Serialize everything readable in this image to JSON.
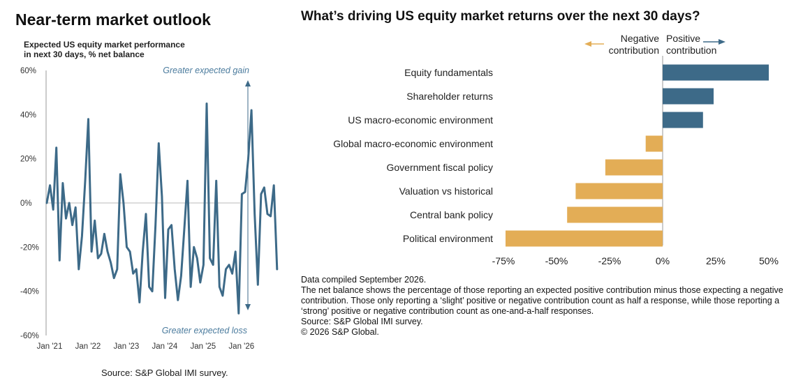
{
  "left_panel": {
    "title": "Near-term market outlook",
    "subtitle": "Expected US equity market performance\nin next 30 days, % net balance",
    "source": "Source: S&P Global IMI survey."
  },
  "right_panel": {
    "title": "What’s driving US equity market returns over the next 30 days?",
    "notes": [
      "Data compiled September 2026.",
      "The net balance shows the percentage of those reporting an expected positive contribution minus those expecting a negative contribution. Those only reporting a ‘slight’ positive or negative contribution count as half a response, while those reporting a ‘strong’ positive or negative contribution count as one-and-a-half responses.",
      "Source: S&P Global IMI survey.",
      "© 2026 S&P Global."
    ]
  },
  "colors": {
    "line": "#3d6a88",
    "positive": "#3d6a88",
    "negative": "#e3ad56",
    "zero_line": "#b8b8b8",
    "axis": "#999999"
  },
  "chart_data": [
    {
      "type": "line",
      "title": "Expected US equity market performance in next 30 days, % net balance",
      "y_tick_labels": [
        "60%",
        "40%",
        "20%",
        "0%",
        "-20%",
        "-40%",
        "-60%"
      ],
      "y_ticks": [
        60,
        40,
        20,
        0,
        -20,
        -40,
        -60
      ],
      "ylim": [
        -60,
        60
      ],
      "x_tick_labels": [
        "Jan '21",
        "Jan '22",
        "Jan '23",
        "Jan '24",
        "Jan '25",
        "Jan '26"
      ],
      "x_start": "2021-01",
      "annotations": {
        "top": "Greater expected gain",
        "bottom": "Greater  expected loss"
      },
      "series": [
        {
          "values": [
            0,
            8,
            -3,
            25,
            -26,
            9,
            -7,
            0,
            -10,
            -2,
            -30,
            -15,
            10,
            38,
            -22,
            -8,
            -25,
            -23,
            -14,
            -22,
            -27,
            -34,
            -30,
            13,
            0,
            -20,
            -22,
            -32,
            -30,
            -45,
            -22,
            -5,
            -38,
            -40,
            -10,
            27,
            3,
            -43,
            -12,
            -10,
            -30,
            -44,
            -33,
            -12,
            10,
            -38,
            -20,
            -25,
            -36,
            -28,
            45,
            -25,
            -28,
            10,
            -38,
            -42,
            -30,
            -28,
            -32,
            -22,
            -50,
            4,
            5,
            20,
            42,
            -5,
            -37,
            4,
            7,
            -5,
            -6,
            8,
            -30
          ]
        }
      ]
    },
    {
      "type": "bar",
      "orientation": "horizontal",
      "title": "What’s driving US equity market returns over the next 30 days?",
      "categories": [
        "Equity fundamentals",
        "Shareholder returns",
        "US macro-economic environment",
        "Global macro-economic environment",
        "Government fiscal policy",
        "Valuation vs historical",
        "Central bank policy",
        "Political environment"
      ],
      "values": [
        50,
        24,
        19,
        -8,
        -27,
        -41,
        -45,
        -74
      ],
      "xlim": [
        -75,
        50
      ],
      "x_tick_labels": [
        "-75%",
        "-50%",
        "-25%",
        "0%",
        "25%",
        "50%"
      ],
      "x_ticks": [
        -75,
        -50,
        -25,
        0,
        25,
        50
      ],
      "legend": {
        "negative": "Negative\ncontribution",
        "positive": "Positive\ncontribution"
      }
    }
  ]
}
